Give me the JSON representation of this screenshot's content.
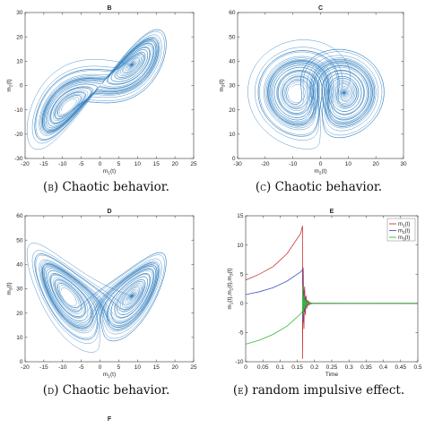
{
  "chart_data": [
    {
      "type": "line",
      "panel": "B",
      "title": "B",
      "xlabel": "m1(t)",
      "ylabel": "m2(t)",
      "xlim": [
        -20,
        25
      ],
      "ylim": [
        -30,
        30
      ],
      "xticks": [
        -20,
        -15,
        -10,
        -5,
        0,
        5,
        10,
        15,
        20,
        25
      ],
      "yticks": [
        -30,
        -20,
        -10,
        0,
        10,
        20,
        30
      ],
      "series": [
        {
          "color": "#2a7bbd"
        }
      ],
      "caption": {
        "label": "(b)",
        "text": "Chaotic behavior."
      }
    },
    {
      "type": "line",
      "panel": "C",
      "title": "C",
      "xlabel": "m2(t)",
      "ylabel": "m3(t)",
      "xlim": [
        -30,
        30
      ],
      "ylim": [
        0,
        60
      ],
      "xticks": [
        -30,
        -20,
        -10,
        0,
        10,
        20,
        30
      ],
      "yticks": [
        0,
        10,
        20,
        30,
        40,
        50,
        60
      ],
      "series": [
        {
          "color": "#2a7bbd"
        }
      ],
      "caption": {
        "label": "(c)",
        "text": "Chaotic behavior."
      }
    },
    {
      "type": "line",
      "panel": "D",
      "title": "D",
      "xlabel": "m1(t)",
      "ylabel": "m3(t)",
      "xlim": [
        -20,
        25
      ],
      "ylim": [
        0,
        60
      ],
      "xticks": [
        -20,
        -15,
        -10,
        -5,
        0,
        5,
        10,
        15,
        20,
        25
      ],
      "yticks": [
        0,
        10,
        20,
        30,
        40,
        50,
        60
      ],
      "series": [
        {
          "color": "#2a7bbd"
        }
      ],
      "caption": {
        "label": "(d)",
        "text": "Chaotic behavior."
      }
    },
    {
      "type": "line",
      "panel": "E",
      "title": "E",
      "xlabel": "Time",
      "ylabel": "m1(t),m2(t),m3(t)",
      "xlim": [
        0,
        0.5
      ],
      "ylim": [
        -10,
        15
      ],
      "xticks": [
        0,
        0.05,
        0.1,
        0.15,
        0.2,
        0.25,
        0.3,
        0.35,
        0.4,
        0.45,
        0.5
      ],
      "yticks": [
        -10,
        -5,
        0,
        5,
        10,
        15
      ],
      "legend_position": "top-right",
      "series": [
        {
          "name": "m1(t)",
          "color": "#cc3333",
          "x": [
            0,
            0.04,
            0.08,
            0.12,
            0.16,
            0.165
          ],
          "y": [
            4.0,
            5.0,
            6.3,
            8.5,
            12.0,
            13.3
          ]
        },
        {
          "name": "m2(t)",
          "color": "#4455bb",
          "x": [
            0,
            0.04,
            0.08,
            0.12,
            0.16,
            0.165
          ],
          "y": [
            1.5,
            2.0,
            2.7,
            3.8,
            5.4,
            5.8
          ]
        },
        {
          "name": "m3(t)",
          "color": "#33bb33",
          "x": [
            0,
            0.04,
            0.08,
            0.12,
            0.16,
            0.165
          ],
          "y": [
            -7.0,
            -6.3,
            -5.3,
            -3.9,
            -1.8,
            -1.3
          ]
        }
      ],
      "caption": {
        "label": "(e)",
        "text": "random impulsive effect."
      }
    },
    {
      "type": "line",
      "panel": "F",
      "title": "F"
    }
  ]
}
